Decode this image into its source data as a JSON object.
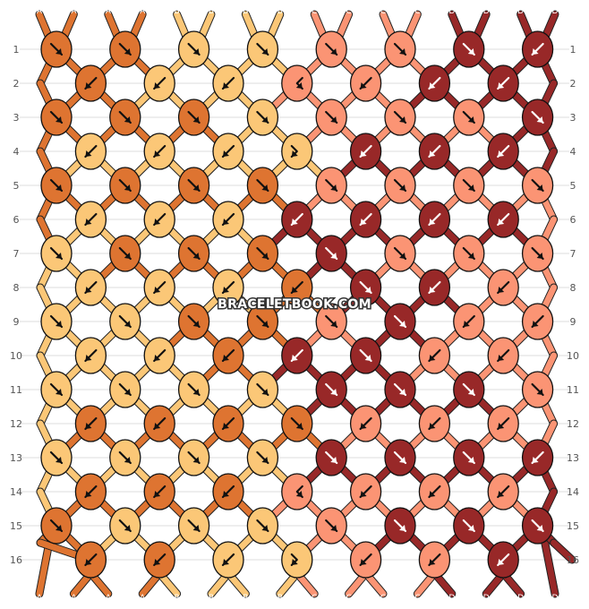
{
  "watermark": "BRACELETBOOK.COM",
  "colors": {
    "A": "#de7431",
    "B": "#fbc777",
    "C": "#fb9474",
    "D": "#982828"
  },
  "strings": [
    "A",
    "A",
    "A",
    "A",
    "B",
    "B",
    "B",
    "B",
    "C",
    "C",
    "C",
    "C",
    "D",
    "D",
    "D",
    "D"
  ],
  "row_numbers": [
    "1",
    "2",
    "3",
    "4",
    "5",
    "6",
    "7",
    "8",
    "9",
    "10",
    "11",
    "12",
    "13",
    "14",
    "15",
    "16"
  ],
  "knot_rows": [
    [
      {
        "c": "A",
        "d": "r"
      },
      {
        "c": "A",
        "d": "r"
      },
      {
        "c": "B",
        "d": "r"
      },
      {
        "c": "B",
        "d": "r"
      },
      {
        "c": "C",
        "d": "r"
      },
      {
        "c": "C",
        "d": "r"
      },
      {
        "c": "D",
        "d": "r"
      },
      {
        "c": "D",
        "d": "l"
      }
    ],
    [
      {
        "c": "A",
        "d": "l"
      },
      {
        "c": "B",
        "d": "l"
      },
      {
        "c": "B",
        "d": "l"
      },
      {
        "c": "C",
        "d": "lr"
      },
      {
        "c": "C",
        "d": "l"
      },
      {
        "c": "D",
        "d": "l"
      },
      {
        "c": "D",
        "d": "l"
      }
    ],
    [
      {
        "c": "A",
        "d": "r"
      },
      {
        "c": "A",
        "d": "r"
      },
      {
        "c": "A",
        "d": "r"
      },
      {
        "c": "B",
        "d": "r"
      },
      {
        "c": "C",
        "d": "r"
      },
      {
        "c": "C",
        "d": "r"
      },
      {
        "c": "C",
        "d": "r"
      },
      {
        "c": "D",
        "d": "r"
      }
    ],
    [
      {
        "c": "B",
        "d": "l"
      },
      {
        "c": "B",
        "d": "l"
      },
      {
        "c": "B",
        "d": "l"
      },
      {
        "c": "B",
        "d": "rl"
      },
      {
        "c": "D",
        "d": "l"
      },
      {
        "c": "D",
        "d": "l"
      },
      {
        "c": "D",
        "d": "l"
      }
    ],
    [
      {
        "c": "A",
        "d": "r"
      },
      {
        "c": "A",
        "d": "r"
      },
      {
        "c": "A",
        "d": "r"
      },
      {
        "c": "A",
        "d": "r"
      },
      {
        "c": "C",
        "d": "r"
      },
      {
        "c": "C",
        "d": "r"
      },
      {
        "c": "C",
        "d": "r"
      },
      {
        "c": "C",
        "d": "r"
      }
    ],
    [
      {
        "c": "B",
        "d": "l"
      },
      {
        "c": "B",
        "d": "l"
      },
      {
        "c": "B",
        "d": "l"
      },
      {
        "c": "D",
        "d": "l"
      },
      {
        "c": "D",
        "d": "l"
      },
      {
        "c": "D",
        "d": "l"
      },
      {
        "c": "D",
        "d": "l"
      }
    ],
    [
      {
        "c": "B",
        "d": "r"
      },
      {
        "c": "A",
        "d": "r"
      },
      {
        "c": "A",
        "d": "r"
      },
      {
        "c": "A",
        "d": "r"
      },
      {
        "c": "D",
        "d": "r"
      },
      {
        "c": "C",
        "d": "r"
      },
      {
        "c": "C",
        "d": "r"
      },
      {
        "c": "C",
        "d": "r"
      }
    ],
    [
      {
        "c": "B",
        "d": "l"
      },
      {
        "c": "B",
        "d": "l"
      },
      {
        "c": "B",
        "d": "l"
      },
      {
        "c": "A",
        "d": "l"
      },
      {
        "c": "D",
        "d": "r"
      },
      {
        "c": "D",
        "d": "l"
      },
      {
        "c": "C",
        "d": "l"
      }
    ],
    [
      {
        "c": "B",
        "d": "r"
      },
      {
        "c": "B",
        "d": "r"
      },
      {
        "c": "A",
        "d": "r"
      },
      {
        "c": "A",
        "d": "r"
      },
      {
        "c": "C",
        "d": "r"
      },
      {
        "c": "D",
        "d": "r"
      },
      {
        "c": "C",
        "d": "l"
      },
      {
        "c": "C",
        "d": "l"
      }
    ],
    [
      {
        "c": "B",
        "d": "l"
      },
      {
        "c": "B",
        "d": "l"
      },
      {
        "c": "A",
        "d": "l"
      },
      {
        "c": "D",
        "d": "l"
      },
      {
        "c": "D",
        "d": "r"
      },
      {
        "c": "C",
        "d": "l"
      },
      {
        "c": "C",
        "d": "l"
      }
    ],
    [
      {
        "c": "B",
        "d": "r"
      },
      {
        "c": "B",
        "d": "r"
      },
      {
        "c": "B",
        "d": "r"
      },
      {
        "c": "B",
        "d": "r"
      },
      {
        "c": "D",
        "d": "r"
      },
      {
        "c": "D",
        "d": "r"
      },
      {
        "c": "D",
        "d": "r"
      },
      {
        "c": "C",
        "d": "r"
      }
    ],
    [
      {
        "c": "A",
        "d": "l"
      },
      {
        "c": "A",
        "d": "l"
      },
      {
        "c": "A",
        "d": "l"
      },
      {
        "c": "A",
        "d": "r"
      },
      {
        "c": "C",
        "d": "l"
      },
      {
        "c": "C",
        "d": "l"
      },
      {
        "c": "C",
        "d": "l"
      }
    ],
    [
      {
        "c": "B",
        "d": "r"
      },
      {
        "c": "B",
        "d": "r"
      },
      {
        "c": "B",
        "d": "r"
      },
      {
        "c": "B",
        "d": "r"
      },
      {
        "c": "D",
        "d": "r"
      },
      {
        "c": "D",
        "d": "r"
      },
      {
        "c": "D",
        "d": "r"
      },
      {
        "c": "D",
        "d": "l"
      }
    ],
    [
      {
        "c": "A",
        "d": "l"
      },
      {
        "c": "A",
        "d": "l"
      },
      {
        "c": "A",
        "d": "l"
      },
      {
        "c": "C",
        "d": "lr"
      },
      {
        "c": "C",
        "d": "l"
      },
      {
        "c": "C",
        "d": "l"
      },
      {
        "c": "C",
        "d": "l"
      }
    ],
    [
      {
        "c": "A",
        "d": "r"
      },
      {
        "c": "B",
        "d": "r"
      },
      {
        "c": "B",
        "d": "r"
      },
      {
        "c": "B",
        "d": "r"
      },
      {
        "c": "C",
        "d": "r"
      },
      {
        "c": "D",
        "d": "r"
      },
      {
        "c": "D",
        "d": "r"
      },
      {
        "c": "D",
        "d": "r"
      }
    ],
    [
      {
        "c": "A",
        "d": "l"
      },
      {
        "c": "A",
        "d": "l"
      },
      {
        "c": "B",
        "d": "l"
      },
      {
        "c": "B",
        "d": "rl"
      },
      {
        "c": "C",
        "d": "l"
      },
      {
        "c": "C",
        "d": "l"
      },
      {
        "c": "D",
        "d": "l"
      }
    ]
  ]
}
